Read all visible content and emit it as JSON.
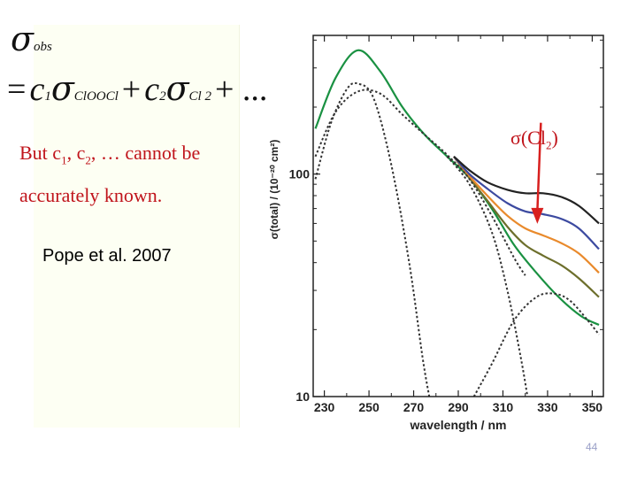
{
  "equation": {
    "lhs_symbol": "σ",
    "lhs_sub": "obs",
    "eq_sign": "=",
    "c1": "c",
    "c1_sub": "1",
    "sig1": "σ",
    "sig1_sub": "ClOOCl",
    "plus1": "+",
    "c2": "c",
    "c2_sub": "2",
    "sig2": "σ",
    "sig2_sub": "Cl 2",
    "tail": "+ ..."
  },
  "notes": {
    "line1_pre": "But c",
    "line1_sub1": "1",
    "line1_mid": ", c",
    "line1_sub2": "2",
    "line1_post": ", … cannot be",
    "line2": "accurately known.",
    "reference": "Pope et al. 2007"
  },
  "annotation": {
    "label_pre": "σ(Cl",
    "label_sub": "2",
    "label_post": ")",
    "arrow_color": "#d8201f",
    "arrow_x": 327,
    "arrow_from_y": 170,
    "arrow_to_y": 62
  },
  "page_number": "44",
  "chart_data": {
    "type": "line",
    "xlabel": "wavelength / nm",
    "ylabel": "σ(total) / (10⁻²⁰ cm²)",
    "xlim": [
      225,
      355
    ],
    "ylim": [
      10,
      420
    ],
    "yscale": "log",
    "xticks": [
      230,
      250,
      270,
      290,
      310,
      330,
      350
    ],
    "yticks": [
      10,
      100
    ],
    "series": [
      {
        "color": "#1a9142",
        "dash": false,
        "points": [
          [
            226,
            160
          ],
          [
            235,
            270
          ],
          [
            245,
            360
          ],
          [
            255,
            290
          ],
          [
            265,
            200
          ],
          [
            275,
            150
          ],
          [
            285,
            120
          ],
          [
            295,
            96
          ],
          [
            305,
            70
          ],
          [
            315,
            48
          ],
          [
            325,
            36
          ],
          [
            335,
            28
          ],
          [
            345,
            23
          ],
          [
            353,
            21
          ]
        ]
      },
      {
        "color": "#6d6f2c",
        "dash": false,
        "points": [
          [
            288,
            120
          ],
          [
            295,
            96
          ],
          [
            303,
            76
          ],
          [
            312,
            58
          ],
          [
            320,
            48
          ],
          [
            328,
            43
          ],
          [
            336,
            39
          ],
          [
            344,
            34
          ],
          [
            353,
            28
          ]
        ]
      },
      {
        "color": "#e98a2c",
        "dash": false,
        "points": [
          [
            288,
            120
          ],
          [
            295,
            98
          ],
          [
            303,
            80
          ],
          [
            312,
            65
          ],
          [
            320,
            57
          ],
          [
            328,
            53
          ],
          [
            336,
            49
          ],
          [
            344,
            44
          ],
          [
            353,
            36
          ]
        ]
      },
      {
        "color": "#3c4aa0",
        "dash": false,
        "points": [
          [
            288,
            120
          ],
          [
            295,
            100
          ],
          [
            303,
            86
          ],
          [
            312,
            74
          ],
          [
            320,
            68
          ],
          [
            328,
            66
          ],
          [
            336,
            63
          ],
          [
            344,
            57
          ],
          [
            353,
            46
          ]
        ]
      },
      {
        "color": "#222222",
        "dash": false,
        "points": [
          [
            288,
            120
          ],
          [
            295,
            104
          ],
          [
            303,
            92
          ],
          [
            312,
            85
          ],
          [
            320,
            82
          ],
          [
            328,
            82
          ],
          [
            336,
            79
          ],
          [
            344,
            72
          ],
          [
            353,
            60
          ]
        ]
      },
      {
        "color": "#333333",
        "dash": true,
        "points": [
          [
            226,
            120
          ],
          [
            235,
            190
          ],
          [
            245,
            235
          ],
          [
            255,
            230
          ],
          [
            265,
            185
          ],
          [
            275,
            150
          ],
          [
            285,
            122
          ],
          [
            295,
            95
          ],
          [
            305,
            65
          ],
          [
            315,
            42
          ],
          [
            320,
            35
          ]
        ]
      },
      {
        "color": "#333333",
        "dash": true,
        "points": [
          [
            226,
            95
          ],
          [
            233,
            170
          ],
          [
            240,
            240
          ],
          [
            245,
            255
          ],
          [
            252,
            220
          ],
          [
            260,
            110
          ],
          [
            268,
            40
          ],
          [
            274,
            15
          ],
          [
            277,
            10
          ]
        ]
      },
      {
        "color": "#333333",
        "dash": true,
        "points": [
          [
            285,
            120
          ],
          [
            295,
            90
          ],
          [
            305,
            55
          ],
          [
            312,
            30
          ],
          [
            318,
            15
          ],
          [
            321,
            10
          ]
        ]
      },
      {
        "color": "#333333",
        "dash": true,
        "points": [
          [
            297,
            10
          ],
          [
            305,
            14
          ],
          [
            315,
            22
          ],
          [
            325,
            28
          ],
          [
            333,
            29
          ],
          [
            340,
            27
          ],
          [
            348,
            22
          ],
          [
            353,
            19
          ]
        ]
      }
    ]
  }
}
